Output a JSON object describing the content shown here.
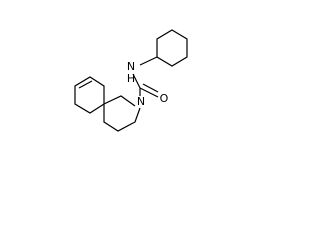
{
  "labels": {
    "amide_n": "N",
    "amide_h": "H",
    "ring_n": "N",
    "oxygen": "O"
  }
}
